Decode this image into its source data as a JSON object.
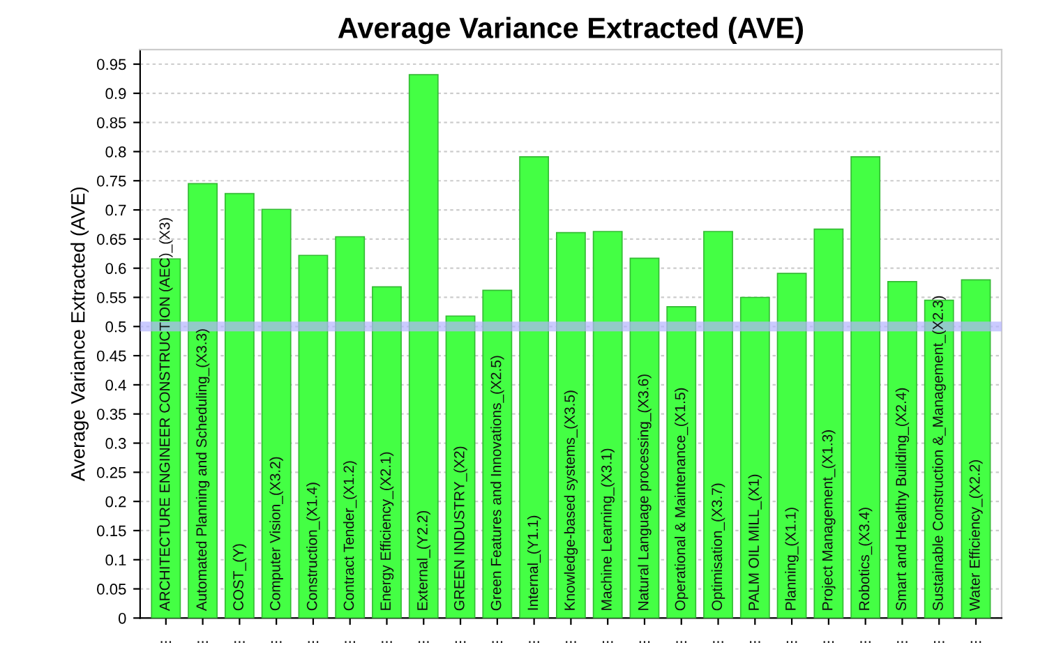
{
  "chart_data": {
    "type": "bar",
    "title": "Average Variance Extracted (AVE)",
    "ylabel": "Average Variance Extracted (AVE)",
    "categories": [
      "...",
      "...",
      "...",
      "...",
      "...",
      "...",
      "...",
      "...",
      "...",
      "...",
      "...",
      "...",
      "...",
      "...",
      "...",
      "...",
      "...",
      "...",
      "...",
      "...",
      "...",
      "...",
      "..."
    ],
    "values": [
      0.616,
      0.745,
      0.728,
      0.701,
      0.622,
      0.654,
      0.568,
      0.932,
      0.518,
      0.562,
      0.791,
      0.661,
      0.663,
      0.617,
      0.534,
      0.663,
      0.55,
      0.591,
      0.667,
      0.791,
      0.577,
      0.545,
      0.58
    ],
    "value_labels": [
      "ARCHITECTURE ENGINEER CONSTRUCTION (AEC)_(X3)",
      "Automated Planning and Scheduling_(X3.3)",
      "COST_(Y)",
      "Computer Vision_(X3.2)",
      "Construction_(X1.4)",
      "Contract Tender_(X1.2)",
      "Energy Efficiency_(X2.1)",
      "External_(Y2.2)",
      "GREEN INDUSTRY_(X2)",
      "Green Features and Innovations_(X2.5)",
      "Internal_(Y1.1)",
      "Knowledge-based systems_(X3.5)",
      "Machine Learning_(X3.1)",
      "Natural Language processing_(X3.6)",
      "Operational & Maintenance_(X1.5)",
      "Optimisation_(X3.7)",
      "PALM OIL MILL_(X1)",
      "Planning_(X1.1)",
      "Project Management_(X1.3)",
      "Robotics_(X3.4)",
      "Smart and Healthy Building_(X2.4)",
      "Sustainable Construction &_Management_(X2.3)",
      "Water Efficiency_(X2.2)"
    ],
    "color": "#44ff44",
    "ylim": [
      0,
      0.975
    ],
    "yticks": [
      0,
      0.05,
      0.1,
      0.15,
      0.2,
      0.25,
      0.3,
      0.35,
      0.4,
      0.45,
      0.5,
      0.55,
      0.6,
      0.65,
      0.7,
      0.75,
      0.8,
      0.85,
      0.9,
      0.95
    ],
    "ref_lines": [
      {
        "axis": "y",
        "value": 0.5,
        "label": null,
        "color": "#b4b4ff"
      }
    ],
    "grid": "y"
  }
}
